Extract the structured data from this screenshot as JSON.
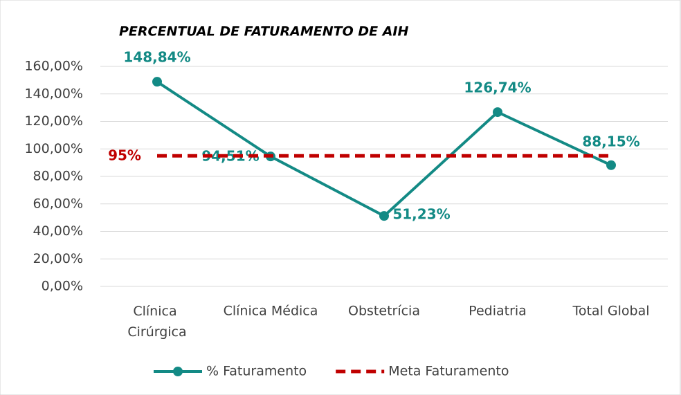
{
  "chart_data": {
    "type": "line",
    "title": "PERCENTUAL DE FATURAMENTO DE AIH",
    "categories": [
      "Clínica Cirúrgica",
      "Clínica Médica",
      "Obstetrícia",
      "Pediatria",
      "Total Global"
    ],
    "series": [
      {
        "name": "% Faturamento",
        "color": "#138a85",
        "values": [
          148.84,
          94.51,
          51.23,
          126.74,
          88.15
        ],
        "value_labels": [
          "148,84%",
          "94,51%",
          "51,23%",
          "126,74%",
          "88,15%"
        ]
      },
      {
        "name": "Meta Faturamento",
        "color": "#c00000",
        "dashed": true,
        "values": [
          95,
          95,
          95,
          95,
          95
        ],
        "value_labels": [
          "95%",
          null,
          null,
          null,
          null
        ]
      }
    ],
    "ylim": [
      0,
      160
    ],
    "yticks": [
      {
        "value": 0,
        "label": "0,00%"
      },
      {
        "value": 20,
        "label": "20,00%"
      },
      {
        "value": 40,
        "label": "40,00%"
      },
      {
        "value": 60,
        "label": "60,00%"
      },
      {
        "value": 80,
        "label": "80,00%"
      },
      {
        "value": 100,
        "label": "100,00%"
      },
      {
        "value": 120,
        "label": "120,00%"
      },
      {
        "value": 140,
        "label": "140,00%"
      },
      {
        "value": 160,
        "label": "160,00%"
      }
    ],
    "grid": true,
    "legend": "bottom"
  }
}
